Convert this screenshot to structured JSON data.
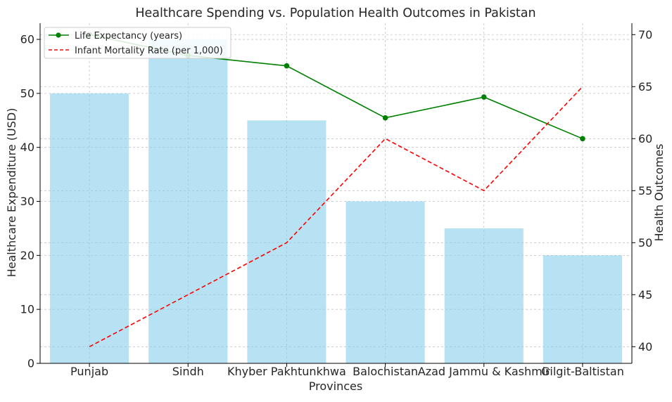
{
  "chart_data": {
    "type": "bar+line",
    "title": "Healthcare Spending vs. Population Health Outcomes in Pakistan",
    "xlabel": "Provinces",
    "ylabel_left": "Healthcare Expenditure (USD)",
    "ylabel_right": "Health Outcomes",
    "categories": [
      "Punjab",
      "Sindh",
      "Khyber Pakhtunkhwa",
      "Balochistan",
      "Azad Jammu & Kashmir",
      "Gilgit-Baltistan"
    ],
    "bar_series": {
      "values": [
        50,
        60,
        45,
        30,
        25,
        20
      ],
      "color": "#87CEEB"
    },
    "line_series": [
      {
        "name": "Life Expectancy (years)",
        "values": [
          70,
          68,
          67,
          62,
          64,
          60
        ],
        "color": "#008000",
        "style": "solid",
        "marker": "circle"
      },
      {
        "name": "Infant Mortality Rate (per 1,000)",
        "values": [
          40,
          45,
          50,
          60,
          55,
          65
        ],
        "color": "#FF0000",
        "style": "dashed",
        "marker": "none"
      }
    ],
    "ylim_left": [
      0,
      63
    ],
    "yticks_left": [
      0,
      10,
      20,
      30,
      40,
      50,
      60
    ],
    "ylim_right": [
      38.4,
      71.1
    ],
    "yticks_right": [
      40,
      45,
      50,
      55,
      60,
      65,
      70
    ],
    "grid": true,
    "legend_position": "upper-left"
  }
}
